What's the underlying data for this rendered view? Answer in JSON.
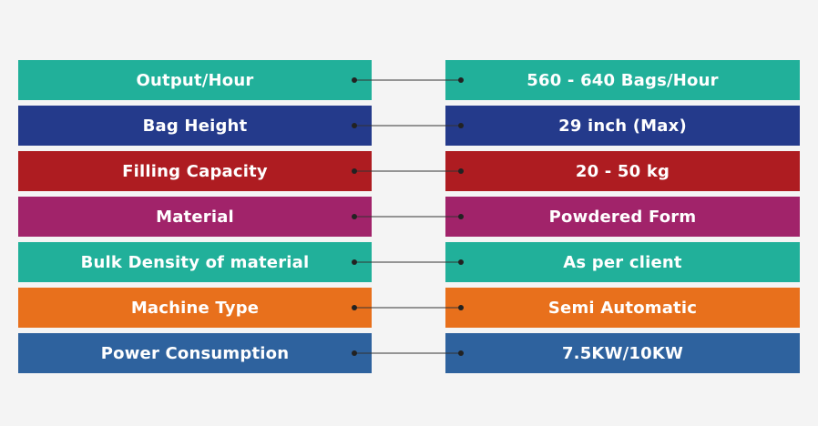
{
  "rows": [
    {
      "label": "Output/Hour",
      "value": "560 - 640 Bags/Hour",
      "color": "#21b09a"
    },
    {
      "label": "Bag Height",
      "value": "29 inch (Max)",
      "color": "#243a8b"
    },
    {
      "label": "Filling Capacity",
      "value": "20 - 50 kg",
      "color": "#ae1c21"
    },
    {
      "label": "Material",
      "value": "Powdered Form",
      "color": "#a1236a"
    },
    {
      "label": "Bulk Density of material",
      "value": "As per client",
      "color": "#21b09a"
    },
    {
      "label": "Machine Type",
      "value": "Semi Automatic",
      "color": "#e8701c"
    },
    {
      "label": "Power Consumption",
      "value": "7.5KW/10KW",
      "color": "#2e629e"
    }
  ]
}
